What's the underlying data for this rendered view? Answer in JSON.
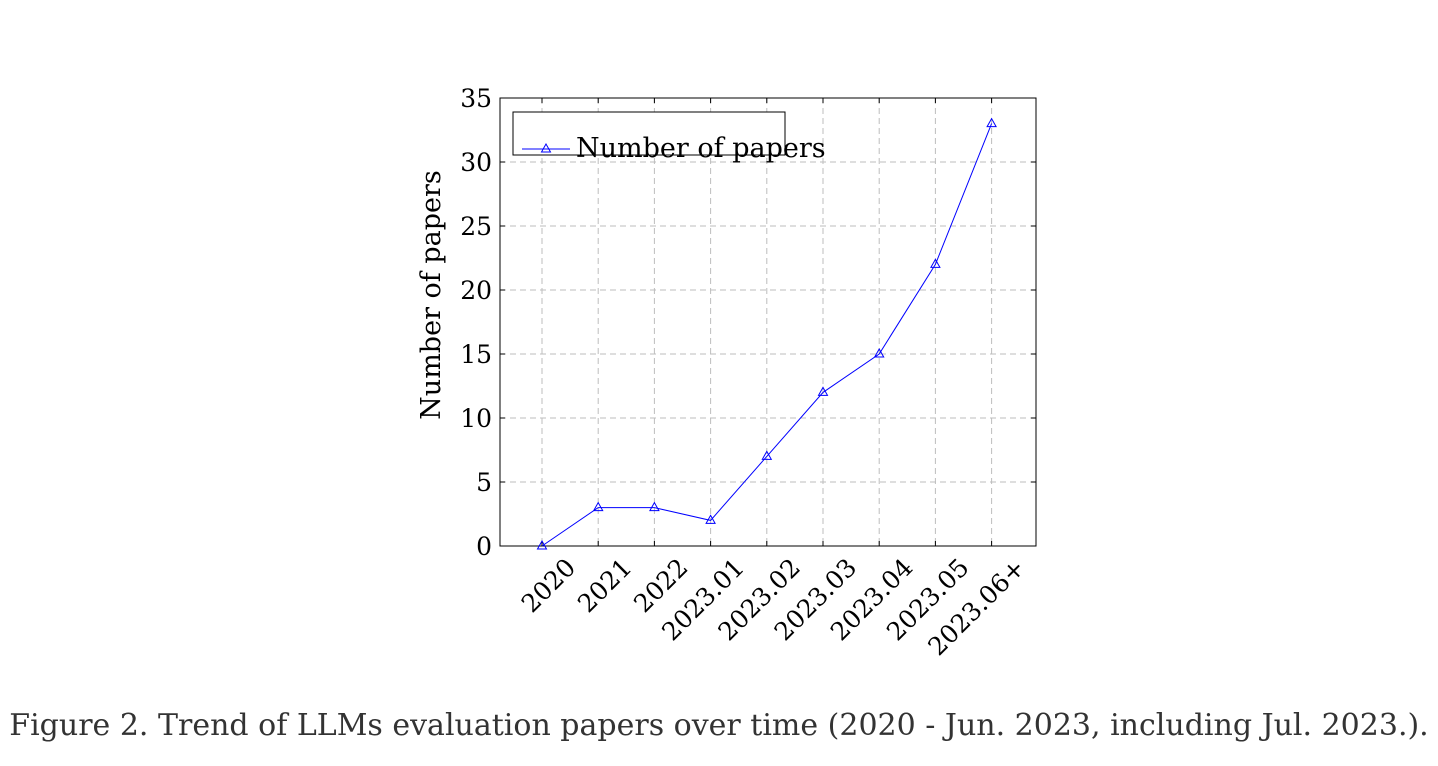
{
  "chart_data": {
    "type": "line",
    "categories": [
      "2020",
      "2021",
      "2022",
      "2023.01",
      "2023.02",
      "2023.03",
      "2023.04",
      "2023.05",
      "2023.06+"
    ],
    "series": [
      {
        "name": "Number of papers",
        "values": [
          0,
          3,
          3,
          2,
          7,
          12,
          15,
          22,
          33
        ],
        "color": "#0000ff",
        "marker": "triangle"
      }
    ],
    "title": "",
    "xlabel": "",
    "ylabel": "Number of papers",
    "ylim": [
      0,
      35
    ],
    "yticks": [
      0,
      5,
      10,
      15,
      20,
      25,
      30,
      35
    ],
    "grid": true,
    "grid_style": "dashed",
    "legend": {
      "placement": "top-left",
      "entries": [
        "Number of papers"
      ]
    }
  },
  "caption": "Figure 2. Trend of LLMs evaluation papers over time (2020 - Jun. 2023, including Jul. 2023.)."
}
